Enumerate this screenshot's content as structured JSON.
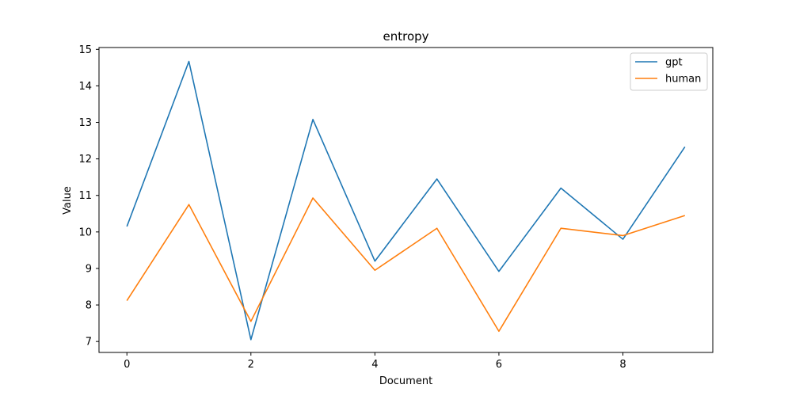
{
  "chart_data": {
    "type": "line",
    "title": "entropy",
    "xlabel": "Document",
    "ylabel": "Value",
    "xlim": [
      -0.45,
      9.45
    ],
    "ylim": [
      6.7,
      15.05
    ],
    "x": [
      0,
      1,
      2,
      3,
      4,
      5,
      6,
      7,
      8,
      9
    ],
    "xticks": [
      0,
      2,
      4,
      6,
      8
    ],
    "yticks": [
      7,
      8,
      9,
      10,
      11,
      12,
      13,
      14,
      15
    ],
    "grid": false,
    "legend_position": "top-right",
    "series": [
      {
        "name": "gpt",
        "color": "#1f77b4",
        "values": [
          10.15,
          14.67,
          7.05,
          13.08,
          9.2,
          11.45,
          8.92,
          11.2,
          9.8,
          12.33
        ]
      },
      {
        "name": "human",
        "color": "#ff7f0e",
        "values": [
          8.12,
          10.75,
          7.55,
          10.93,
          8.95,
          10.1,
          7.28,
          10.1,
          9.9,
          10.45
        ]
      }
    ]
  }
}
